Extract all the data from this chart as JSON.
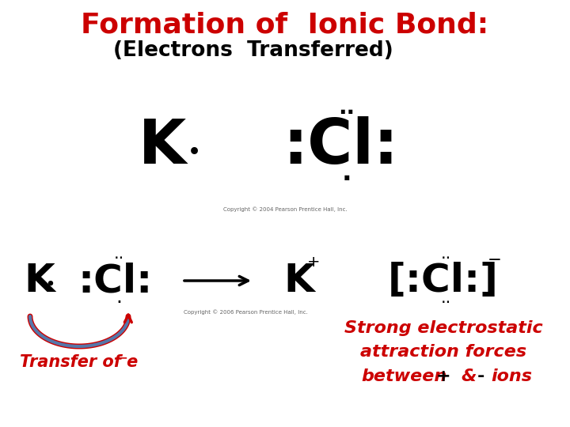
{
  "title_line1": "Formation of  Ionic Bond:",
  "title_line2": "(Electrons  Transferred)",
  "title_color": "#cc0000",
  "subtitle_color": "#000000",
  "bg_color": "#ffffff",
  "text_color": "#000000",
  "red_color": "#cc0000",
  "blue_color": "#5577aa",
  "copyright_top": "Copyright © 2004 Pearson Prentice Hall, Inc.",
  "copyright_bottom": "Copyright © 2006 Pearson Prentice Hall, Inc.",
  "transfer_label": "Transfer of e",
  "strong_line1": "Strong electrostatic",
  "strong_line2": "attraction forces",
  "strong_line3": "between",
  "plus_minus_ions": " + & - ions"
}
